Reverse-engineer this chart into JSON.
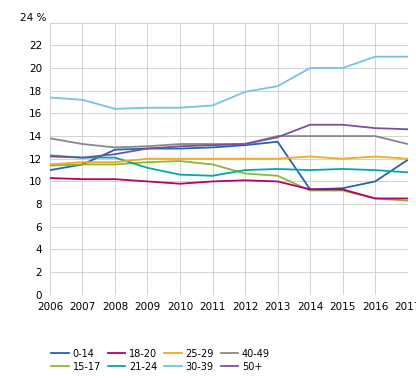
{
  "years": [
    2006,
    2007,
    2008,
    2009,
    2010,
    2011,
    2012,
    2013,
    2014,
    2015,
    2016,
    2017
  ],
  "series": {
    "0-14": [
      11.0,
      11.5,
      12.8,
      12.9,
      12.9,
      13.0,
      13.2,
      13.5,
      9.3,
      9.4,
      10.0,
      11.9
    ],
    "15-17": [
      11.4,
      11.5,
      11.5,
      11.7,
      11.8,
      11.5,
      10.7,
      10.5,
      9.2,
      9.2,
      8.5,
      8.3
    ],
    "18-20": [
      10.3,
      10.2,
      10.2,
      10.0,
      9.8,
      10.0,
      10.1,
      10.0,
      9.3,
      9.3,
      8.5,
      8.5
    ],
    "21-24": [
      12.3,
      12.1,
      12.1,
      11.2,
      10.6,
      10.5,
      11.0,
      11.1,
      11.0,
      11.1,
      11.0,
      10.8
    ],
    "25-29": [
      11.5,
      11.7,
      11.7,
      12.0,
      12.0,
      12.0,
      12.0,
      12.0,
      12.2,
      12.0,
      12.2,
      12.0
    ],
    "30-39": [
      17.4,
      17.2,
      16.4,
      16.5,
      16.5,
      16.7,
      17.9,
      18.4,
      20.0,
      20.0,
      21.0,
      21.0
    ],
    "40-49": [
      13.8,
      13.3,
      13.0,
      13.1,
      13.3,
      13.3,
      13.3,
      14.0,
      14.0,
      14.0,
      14.0,
      13.3
    ],
    "50+": [
      12.2,
      12.1,
      12.4,
      12.9,
      13.1,
      13.2,
      13.3,
      13.9,
      15.0,
      15.0,
      14.7,
      14.6
    ]
  },
  "series_order": [
    "0-14",
    "15-17",
    "18-20",
    "21-24",
    "25-29",
    "30-39",
    "40-49",
    "50+"
  ],
  "colors": {
    "0-14": "#2166ac",
    "15-17": "#8db833",
    "18-20": "#b8006e",
    "21-24": "#00aaaa",
    "25-29": "#f5a623",
    "30-39": "#74c3e8",
    "40-49": "#888888",
    "50+": "#7b4fa0"
  },
  "ylim": [
    0,
    24
  ],
  "yticks": [
    0,
    2,
    4,
    6,
    8,
    10,
    12,
    14,
    16,
    18,
    20,
    22,
    24
  ],
  "grid_color": "#cccccc",
  "linewidth": 1.3,
  "tick_fontsize": 7.5,
  "legend_fontsize": 7.0,
  "ylabel_label": "24 %",
  "legend_row1": [
    "0-14",
    "15-17",
    "18-20",
    "21-24"
  ],
  "legend_row2": [
    "25-29",
    "30-39",
    "40-49",
    "50+"
  ]
}
